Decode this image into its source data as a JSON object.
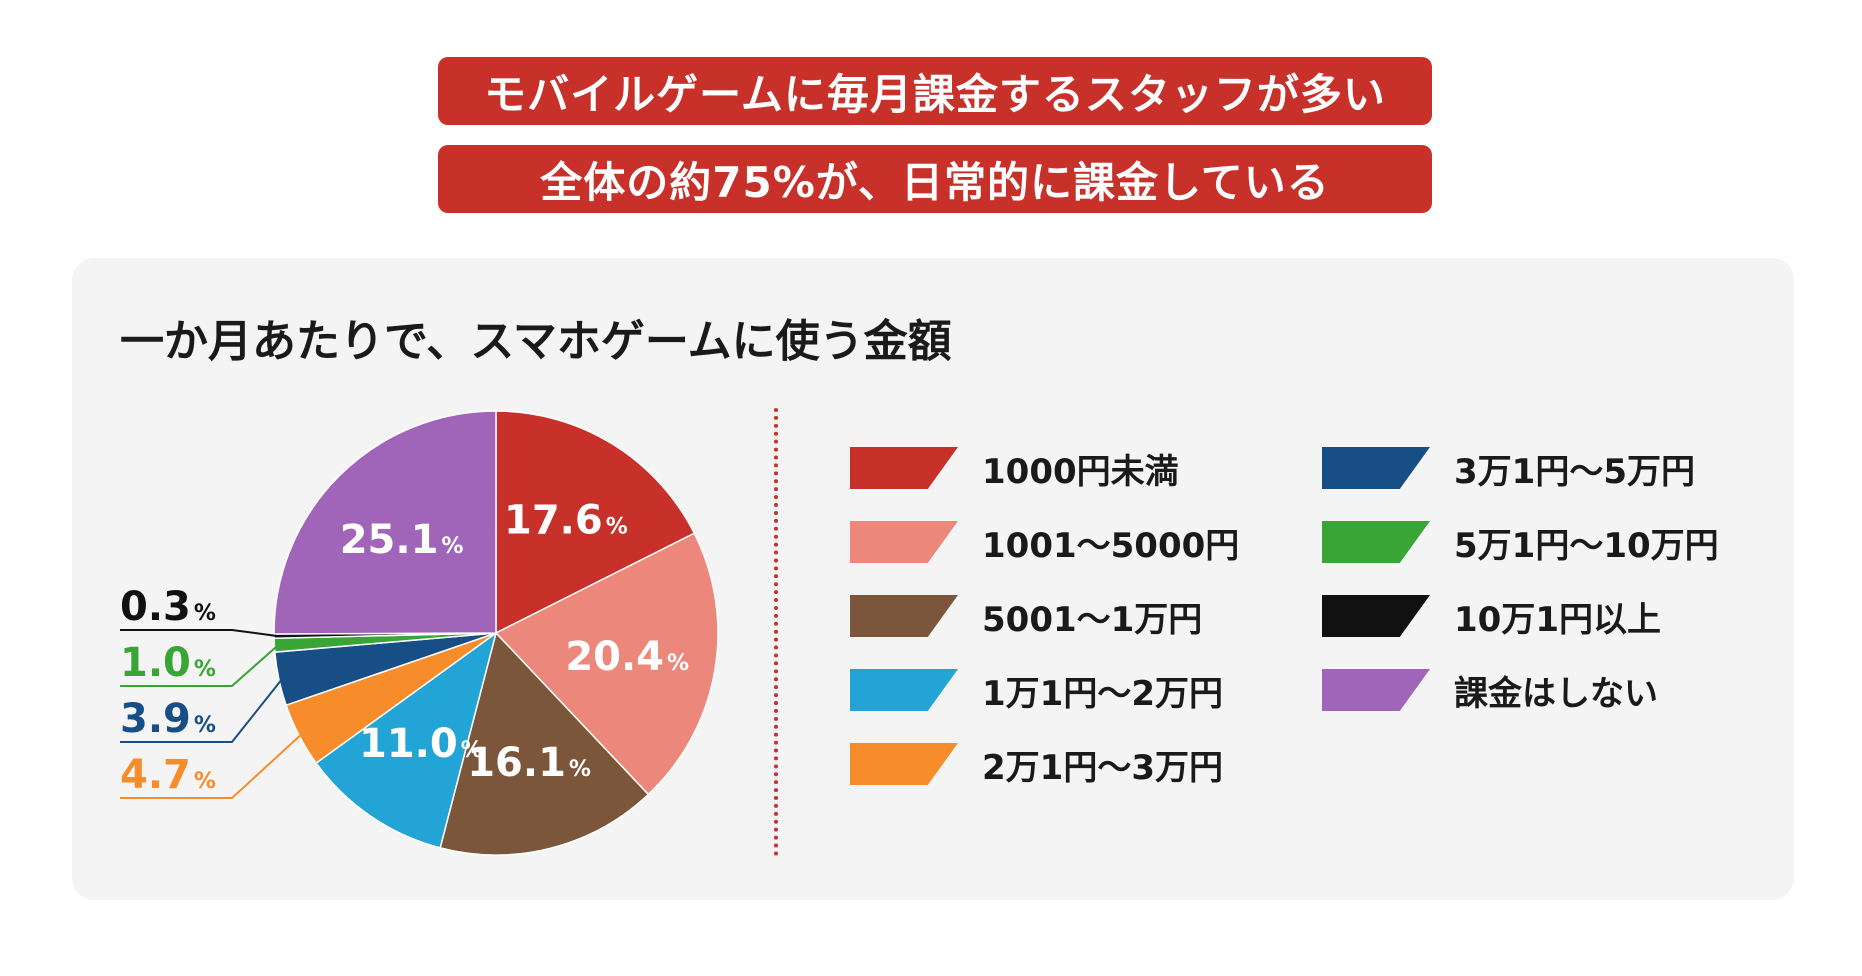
{
  "header": {
    "banner_line1": "モバイルゲームに毎月課金するスタッフが多い",
    "banner_line2": "全体の約75%が、日常的に課金している"
  },
  "colors": {
    "banner_bg": "#c8302a",
    "panel_bg": "#f4f4f4"
  },
  "chart_data": {
    "type": "pie",
    "title": "一か月あたりで、スマホゲームに使う金額",
    "unit": "%",
    "start_angle_deg": 0,
    "direction": "clockwise",
    "slices": [
      {
        "label": "1000円未満",
        "value": 17.6,
        "display": "17.6",
        "color": "#c8302a"
      },
      {
        "label": "1001〜5000円",
        "value": 20.4,
        "display": "20.4",
        "color": "#ec887b"
      },
      {
        "label": "5001〜1万円",
        "value": 16.1,
        "display": "16.1",
        "color": "#7b563a"
      },
      {
        "label": "1万1円〜2万円",
        "value": 11.0,
        "display": "11.0",
        "color": "#23a4d6"
      },
      {
        "label": "2万1円〜3万円",
        "value": 4.7,
        "display": "4.7",
        "color": "#f78c2a"
      },
      {
        "label": "3万1円〜5万円",
        "value": 3.9,
        "display": "3.9",
        "color": "#174e86"
      },
      {
        "label": "5万1円〜10万円",
        "value": 1.0,
        "display": "1.0",
        "color": "#3aa537"
      },
      {
        "label": "10万1円以上",
        "value": 0.3,
        "display": "0.3",
        "color": "#111111"
      },
      {
        "label": "課金はしない",
        "value": 25.1,
        "display": "25.1",
        "color": "#a064b8"
      }
    ],
    "legend_placement": "right"
  }
}
